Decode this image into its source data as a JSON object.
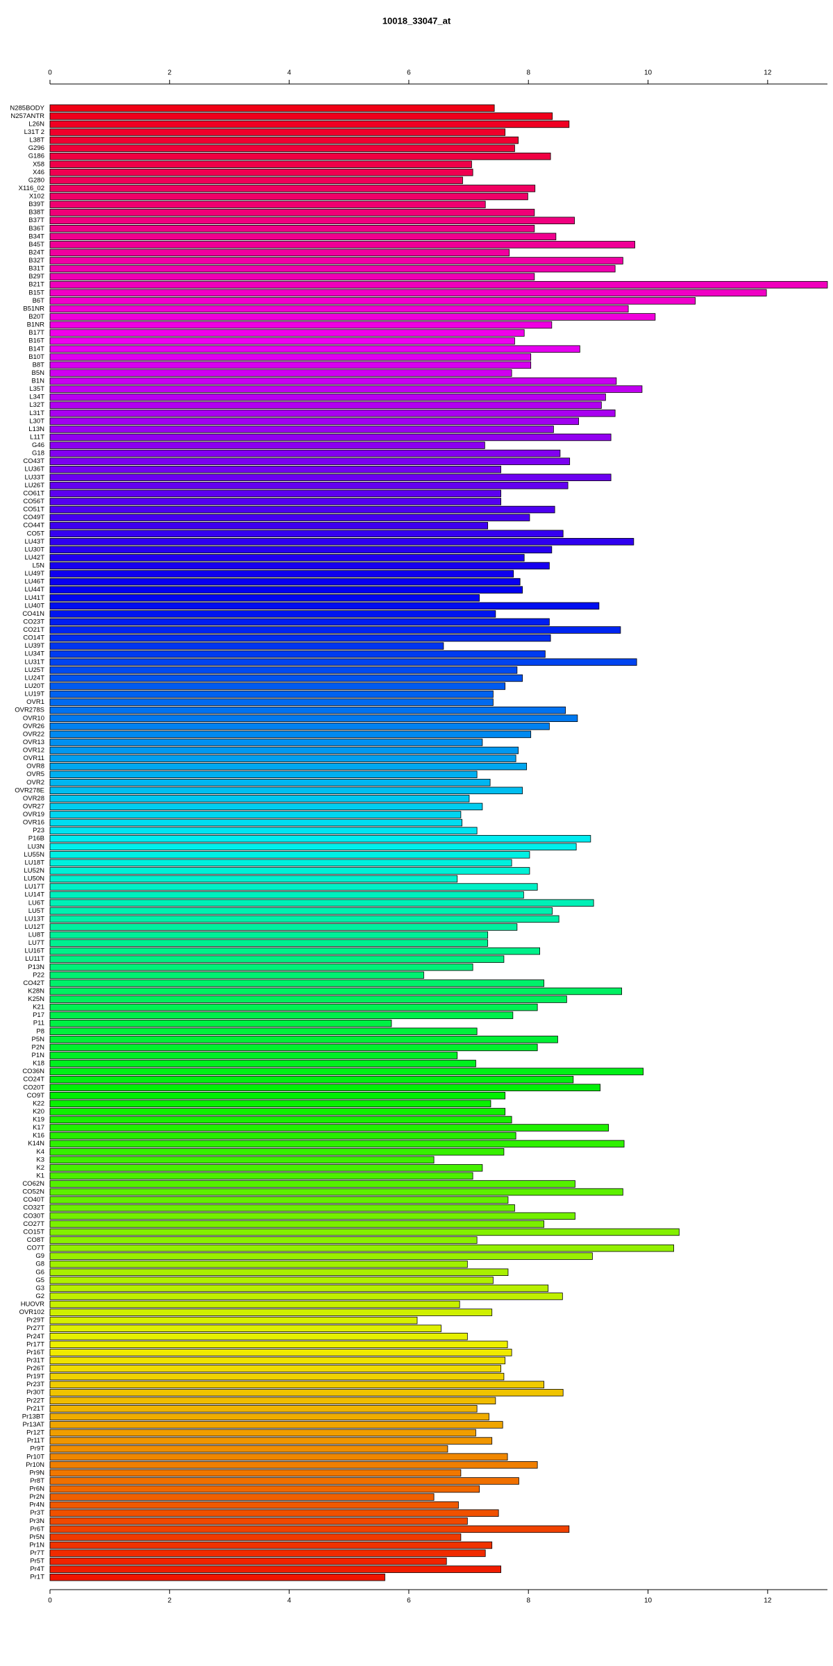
{
  "chart_data": {
    "type": "hbar",
    "title": "10018_33047_at",
    "categories": [
      "N285BODY",
      "N257ANTR",
      "L26N",
      "L31T 2",
      "L38T",
      "G296",
      "G186",
      "X58",
      "X46",
      "G280",
      "X116_02",
      "X102",
      "B39T",
      "B38T",
      "B37T",
      "B36T",
      "B34T",
      "B45T",
      "B24T",
      "B32T",
      "B31T",
      "B29T",
      "B21T",
      "B15T",
      "B6T",
      "B51NR",
      "B20T",
      "B1NR",
      "B17T",
      "B16T",
      "B14T",
      "B10T",
      "B8T",
      "B5N",
      "B1N",
      "L35T",
      "L34T",
      "L32T",
      "L31T",
      "L30T",
      "L13N",
      "L11T",
      "G46",
      "G18",
      "CO43T",
      "LU36T",
      "LU33T",
      "LU26T",
      "CO61T",
      "CO56T",
      "CO51T",
      "CO49T",
      "CO44T",
      "CO5T",
      "LU43T",
      "LU30T",
      "LU42T",
      "L5N",
      "LU49T",
      "LU46T",
      "LU44T",
      "LU41T",
      "LU40T",
      "CO41N",
      "CO23T",
      "CO21T",
      "CO14T",
      "LU39T",
      "LU34T",
      "LU31T",
      "LU25T",
      "LU24T",
      "LU20T",
      "LU19T",
      "OVR1",
      "OVR278S",
      "OVR10",
      "OVR26",
      "OVR22",
      "OVR13",
      "OVR12",
      "OVR11",
      "OVR8",
      "OVR5",
      "OVR2",
      "OVR278E",
      "OVR28",
      "OVR27",
      "OVR19",
      "OVR16",
      "P23",
      "P16B",
      "LU3N",
      "LU55N",
      "LU18T",
      "LU52N",
      "LU50N",
      "LU17T",
      "LU14T",
      "LU6T",
      "LU5T",
      "LU13T",
      "LU12T",
      "LU8T",
      "LU7T",
      "LU16T",
      "LU11T",
      "P13N",
      "P22",
      "CO42T",
      "K28N",
      "K25N",
      "K21",
      "P17",
      "P11",
      "P8",
      "P5N",
      "P2N",
      "P1N",
      "K18",
      "CO36N",
      "CO24T",
      "CO20T",
      "CO9T",
      "K22",
      "K20",
      "K19",
      "K17",
      "K16",
      "K14N",
      "K4",
      "K3",
      "K2",
      "K1",
      "CO62N",
      "CO52N",
      "CO40T",
      "CO32T",
      "CO30T",
      "CO27T",
      "CO15T",
      "CO8T",
      "CO7T",
      "G9",
      "G8",
      "G6",
      "G5",
      "G3",
      "G2",
      "HUOVR",
      "OVR102",
      "Pr29T",
      "Pr27T",
      "Pr24T",
      "Pr17T",
      "Pr16T",
      "Pr31T",
      "Pr26T",
      "Pr19T",
      "Pr23T",
      "Pr30T",
      "Pr22T",
      "Pr21T",
      "Pr13BT",
      "Pr13AT",
      "Pr12T",
      "Pr11T",
      "Pr9T",
      "Pr10T",
      "Pr10N",
      "Pr9N",
      "Pr8T",
      "Pr6N",
      "Pr2N",
      "Pr4N",
      "Pr3T",
      "Pr3N",
      "Pr6T",
      "Pr5N",
      "Pr1N",
      "Pr7T",
      "Pr5T",
      "Pr4T",
      "Pr1T"
    ],
    "values": [
      7.43,
      8.4,
      8.68,
      7.61,
      7.83,
      7.77,
      8.37,
      7.05,
      7.07,
      6.9,
      8.11,
      7.99,
      7.28,
      8.1,
      8.77,
      8.1,
      8.46,
      9.78,
      7.68,
      9.58,
      9.45,
      8.1,
      13.0,
      11.98,
      10.79,
      9.67,
      10.12,
      8.39,
      7.93,
      7.77,
      8.86,
      8.04,
      8.04,
      7.72,
      9.47,
      9.9,
      9.29,
      9.22,
      9.45,
      8.84,
      8.42,
      9.38,
      7.27,
      8.53,
      8.69,
      7.54,
      9.38,
      8.66,
      7.54,
      7.54,
      8.44,
      8.02,
      7.32,
      8.58,
      9.76,
      8.39,
      7.93,
      8.35,
      7.75,
      7.86,
      7.9,
      7.18,
      9.18,
      7.45,
      8.35,
      9.54,
      8.37,
      6.58,
      8.28,
      9.81,
      7.81,
      7.9,
      7.61,
      7.41,
      7.41,
      8.62,
      8.82,
      8.35,
      8.04,
      7.23,
      7.83,
      7.79,
      7.97,
      7.14,
      7.36,
      7.9,
      7.01,
      7.23,
      6.87,
      6.89,
      7.14,
      9.04,
      8.8,
      8.02,
      7.72,
      8.02,
      6.81,
      8.15,
      7.92,
      9.09,
      8.4,
      8.51,
      7.81,
      7.32,
      7.32,
      8.19,
      7.59,
      7.07,
      6.25,
      8.26,
      9.56,
      8.64,
      8.15,
      7.74,
      5.71,
      7.14,
      8.49,
      8.15,
      6.81,
      7.12,
      9.92,
      8.75,
      9.2,
      7.61,
      7.37,
      7.61,
      7.72,
      9.34,
      7.79,
      9.6,
      7.59,
      6.42,
      7.23,
      7.07,
      8.78,
      9.58,
      7.66,
      7.77,
      8.78,
      8.26,
      10.52,
      7.14,
      10.43,
      9.07,
      6.98,
      7.66,
      7.41,
      8.33,
      8.57,
      6.85,
      7.39,
      6.14,
      6.54,
      6.98,
      7.65,
      7.72,
      7.61,
      7.54,
      7.59,
      8.26,
      8.58,
      7.45,
      7.14,
      7.34,
      7.57,
      7.12,
      7.39,
      6.65,
      7.65,
      8.15,
      6.87,
      7.84,
      7.18,
      6.42,
      6.83,
      7.5,
      6.98,
      8.68,
      6.87,
      7.39,
      7.28,
      6.63,
      7.54,
      5.6
    ],
    "xlim": [
      0,
      13
    ],
    "xticks": [
      0,
      2,
      4,
      6,
      8,
      10,
      12
    ],
    "color": {
      "hue_from": 355,
      "hue_to": 5,
      "saturation": 100,
      "lightness": 47
    }
  }
}
